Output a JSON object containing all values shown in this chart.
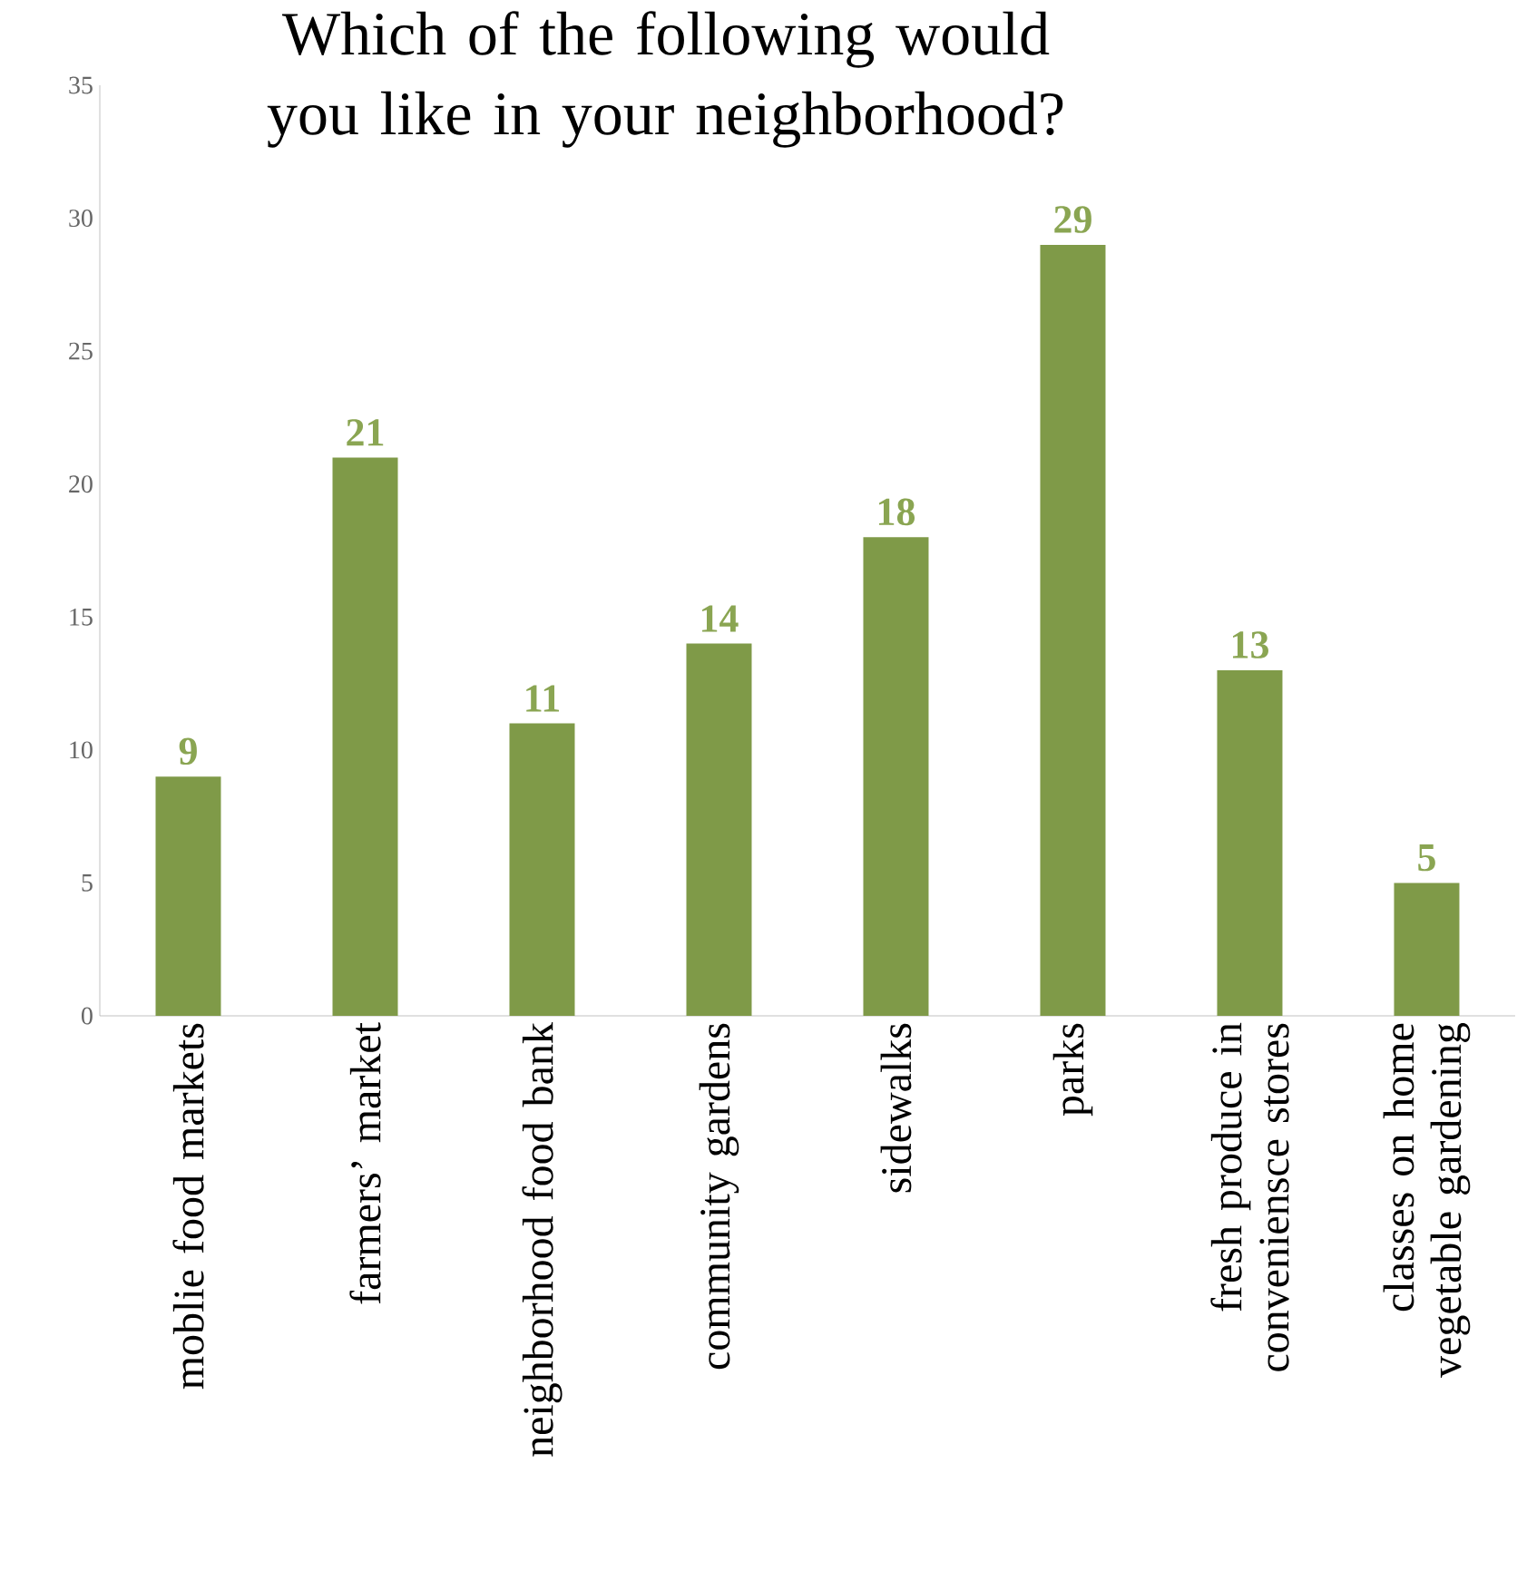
{
  "chart_data": {
    "type": "bar",
    "title": "Which of the following would you like in your neighborhood?",
    "categories": [
      "moblie food markets",
      "farmers’ market",
      "neighborhood food bank",
      "community gardens",
      "sidewalks",
      "parks",
      "fresh produce in conveniensce stores",
      "classes on home vegetable gardening"
    ],
    "values": [
      9,
      21,
      11,
      14,
      18,
      29,
      13,
      5
    ],
    "color": "#7f9a48",
    "ylim": [
      0,
      35
    ],
    "yticks": [
      0,
      5,
      10,
      15,
      20,
      25,
      30,
      35
    ],
    "data_labels": true
  }
}
